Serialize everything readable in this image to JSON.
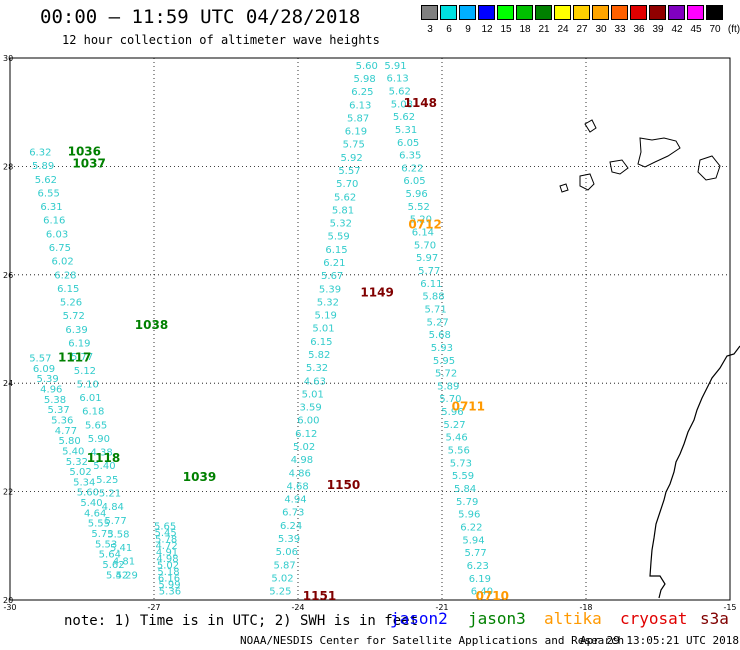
{
  "title": "00:00 – 11:59 UTC 04/28/2018",
  "subtitle": "12 hour collection of altimeter wave heights",
  "legend": {
    "unit": "(ft)",
    "colors": [
      "#808080",
      "#00e0e0",
      "#00b0ff",
      "#0000ff",
      "#00ff00",
      "#00c000",
      "#008000",
      "#ffff00",
      "#ffd000",
      "#ffa500",
      "#ff6000",
      "#e00000",
      "#900000",
      "#8000c0",
      "#ff00ff",
      "#000000"
    ],
    "labels": [
      "3",
      "6",
      "9",
      "12",
      "15",
      "18",
      "21",
      "24",
      "27",
      "30",
      "33",
      "36",
      "39",
      "42",
      "45",
      "70"
    ]
  },
  "axes": {
    "lon_ticks": [
      "-30",
      "-27",
      "-24",
      "-21",
      "-18",
      "-15"
    ],
    "lat_ticks": [
      "30",
      "28",
      "26",
      "24",
      "22",
      "20"
    ]
  },
  "tracks": [
    {
      "name": "left-inner",
      "from": [
        -29.6,
        28.2
      ],
      "to": [
        -27.8,
        20.4
      ],
      "values": [
        "6.32",
        "5.89",
        "5.62",
        "6.55",
        "6.31",
        "6.16",
        "6.03",
        "6.75",
        "6.02",
        "6.28",
        "6.15",
        "5.26",
        "5.72",
        "6.39",
        "6.19",
        "5.77",
        "5.12",
        "5.10",
        "6.01",
        "6.18",
        "5.65",
        "5.90",
        "4.38",
        "5.40",
        "5.25",
        "5.21",
        "4.84",
        "5.77",
        "5.58",
        "5.41",
        "4.81",
        "5.29"
      ]
    },
    {
      "name": "left-outer",
      "from": [
        -29.6,
        24.4
      ],
      "to": [
        -28.0,
        20.4
      ],
      "values": [
        "5.57",
        "6.09",
        "5.39",
        "4.96",
        "5.38",
        "5.37",
        "5.36",
        "4.77",
        "5.80",
        "5.40",
        "5.32",
        "5.02",
        "5.34",
        "5.60",
        "5.40",
        "4.64",
        "5.55",
        "5.73",
        "5.53",
        "5.64",
        "5.62",
        "5.42"
      ]
    },
    {
      "name": "left-lower",
      "from": [
        -27.0,
        21.3
      ],
      "to": [
        -26.9,
        20.1
      ],
      "values": [
        "5.65",
        "5.45",
        "5.78",
        "4.72",
        "4.91",
        "4.98",
        "5.02",
        "5.18",
        "6.16",
        "5.99",
        "5.36"
      ]
    },
    {
      "name": "center-up",
      "from": [
        -24.6,
        20.1
      ],
      "to": [
        -22.8,
        29.8
      ],
      "values": [
        "5.25",
        "5.02",
        "5.87",
        "5.06",
        "5.39",
        "6.24",
        "6.73",
        "4.94",
        "4.68",
        "4.86",
        "4.98",
        "5.02",
        "6.12",
        "6.00",
        "3.59",
        "5.01",
        "4.63",
        "5.32",
        "5.82",
        "6.15",
        "5.01",
        "5.19",
        "5.32",
        "5.39",
        "5.67",
        "6.21",
        "6.15",
        "5.59",
        "5.32",
        "5.81",
        "5.62",
        "5.70",
        "5.57",
        "5.92",
        "5.75",
        "6.19",
        "5.87",
        "6.13",
        "6.25",
        "5.98",
        "5.60"
      ]
    },
    {
      "name": "center-down",
      "from": [
        -22.2,
        29.8
      ],
      "to": [
        -20.4,
        20.1
      ],
      "values": [
        "5.91",
        "6.13",
        "5.62",
        "5.08",
        "5.62",
        "5.31",
        "6.05",
        "6.35",
        "6.22",
        "6.05",
        "5.96",
        "5.52",
        "5.20",
        "6.14",
        "5.70",
        "5.97",
        "5.77",
        "6.11",
        "5.88",
        "5.71",
        "5.27",
        "5.68",
        "5.93",
        "5.95",
        "5.72",
        "5.89",
        "5.70",
        "5.96",
        "5.27",
        "5.46",
        "5.56",
        "5.73",
        "5.59",
        "5.84",
        "5.79",
        "5.96",
        "6.22",
        "5.94",
        "5.77",
        "6.23",
        "6.19",
        "6.40"
      ]
    }
  ],
  "time_labels": [
    {
      "text": "1036",
      "lon": -28.8,
      "lat": 28.2,
      "color": "#008000"
    },
    {
      "text": "1037",
      "lon": -28.7,
      "lat": 27.98,
      "color": "#008000"
    },
    {
      "text": "1038",
      "lon": -27.4,
      "lat": 25.0,
      "color": "#008000"
    },
    {
      "text": "1117",
      "lon": -29.0,
      "lat": 24.4,
      "color": "#008000"
    },
    {
      "text": "1118",
      "lon": -28.4,
      "lat": 22.55,
      "color": "#008000"
    },
    {
      "text": "1039",
      "lon": -26.4,
      "lat": 22.2,
      "color": "#008000"
    },
    {
      "text": "1148",
      "lon": -21.8,
      "lat": 29.1,
      "color": "#800000"
    },
    {
      "text": "0712",
      "lon": -21.7,
      "lat": 26.85,
      "color": "#ff9900"
    },
    {
      "text": "1149",
      "lon": -22.7,
      "lat": 25.6,
      "color": "#800000"
    },
    {
      "text": "0711",
      "lon": -20.8,
      "lat": 23.5,
      "color": "#ff9900"
    },
    {
      "text": "1150",
      "lon": -23.4,
      "lat": 22.05,
      "color": "#800000"
    },
    {
      "text": "1151",
      "lon": -23.9,
      "lat": 20.0,
      "color": "#800000"
    },
    {
      "text": "0710",
      "lon": -20.3,
      "lat": 20.0,
      "color": "#ff9900"
    }
  ],
  "note": "note: 1) Time is in UTC; 2) SWH is in feet",
  "satellites": [
    {
      "name": "jason2",
      "color": "#0000ff"
    },
    {
      "name": "jason3",
      "color": "#008000"
    },
    {
      "name": "altika",
      "color": "#ff9900"
    },
    {
      "name": "cryosat",
      "color": "#e00000"
    },
    {
      "name": "s3a",
      "color": "#800000"
    }
  ],
  "credit": "NOAA/NESDIS Center for Satellite Applications and Research",
  "stamp": "Apr 29 13:05:21 UTC 2018"
}
